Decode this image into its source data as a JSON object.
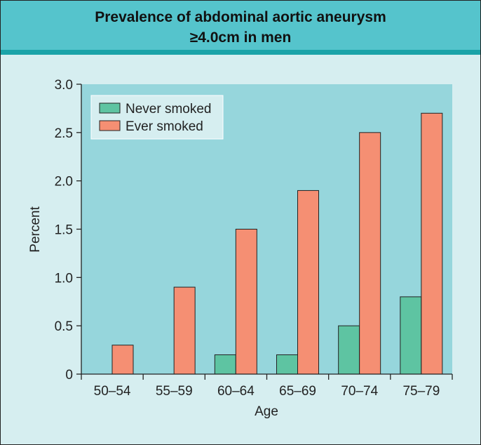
{
  "header": {
    "title_line1": "Prevalence of abdominal aortic aneurysm",
    "title_line2": "≥4.0cm in men"
  },
  "colors": {
    "never_smoked": "#5ec4a2",
    "ever_smoked": "#f58f73",
    "plot_background": "#96d6dc",
    "page_background": "#d6eef0",
    "header": "#55c4cc",
    "header_rule": "#1aa3a8"
  },
  "chart_data": {
    "type": "bar",
    "title": "Prevalence of abdominal aortic aneurysm ≥4.0cm in men",
    "xlabel": "Age",
    "ylabel": "Percent",
    "categories": [
      "50–54",
      "55–59",
      "60–64",
      "65–69",
      "70–74",
      "75–79"
    ],
    "series": [
      {
        "name": "Never smoked",
        "values": [
          0,
          0,
          0.2,
          0.2,
          0.5,
          0.8
        ]
      },
      {
        "name": "Ever smoked",
        "values": [
          0.3,
          0.9,
          1.5,
          1.9,
          2.5,
          2.7
        ]
      }
    ],
    "ylim": [
      0,
      3.0
    ],
    "yticks": [
      0,
      0.5,
      1.0,
      1.5,
      2.0,
      2.5,
      3.0
    ],
    "ytick_labels": [
      "0",
      "0.5",
      "1.0",
      "1.5",
      "2.0",
      "2.5",
      "3.0"
    ],
    "grid": false,
    "legend_position": "top-left"
  }
}
